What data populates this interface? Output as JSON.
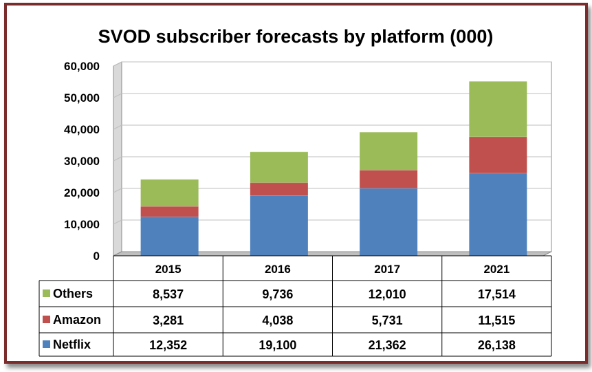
{
  "chart_data": {
    "type": "bar",
    "stacked": true,
    "title": "SVOD subscriber forecasts by platform (000)",
    "xlabel": "",
    "ylabel": "",
    "categories": [
      "2015",
      "2016",
      "2017",
      "2021"
    ],
    "ylim": [
      0,
      60000
    ],
    "yticks": [
      "0",
      "10,000",
      "20,000",
      "30,000",
      "40,000",
      "50,000",
      "60,000"
    ],
    "ytick_values": [
      0,
      10000,
      20000,
      30000,
      40000,
      50000,
      60000
    ],
    "grid": true,
    "legend": "data-table-left",
    "series": [
      {
        "name": "Netflix",
        "color": "#4f81bd",
        "values": [
          12352,
          19100,
          21362,
          26138
        ],
        "labels": [
          "12,352",
          "19,100",
          "21,362",
          "26,138"
        ]
      },
      {
        "name": "Amazon",
        "color": "#c0504d",
        "values": [
          3281,
          4038,
          5731,
          11515
        ],
        "labels": [
          "3,281",
          "4,038",
          "5,731",
          "11,515"
        ]
      },
      {
        "name": "Others",
        "color": "#9bbb59",
        "values": [
          8537,
          9736,
          12010,
          17514
        ],
        "labels": [
          "8,537",
          "9,736",
          "12,010",
          "17,514"
        ]
      }
    ],
    "table_row_order": [
      "Others",
      "Amazon",
      "Netflix"
    ]
  },
  "colors": {
    "frame_border": "#7a2b2b",
    "plot_background": "#ffffff",
    "gridline": "#bfbfbf",
    "wall_side": "#d9d9d9"
  }
}
